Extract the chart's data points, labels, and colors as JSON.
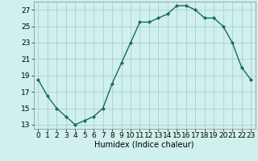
{
  "x": [
    0,
    1,
    2,
    3,
    4,
    5,
    6,
    7,
    8,
    9,
    10,
    11,
    12,
    13,
    14,
    15,
    16,
    17,
    18,
    19,
    20,
    21,
    22,
    23
  ],
  "y": [
    18.5,
    16.5,
    15.0,
    14.0,
    13.0,
    13.5,
    14.0,
    15.0,
    18.0,
    20.5,
    23.0,
    25.5,
    25.5,
    26.0,
    26.5,
    27.5,
    27.5,
    27.0,
    26.0,
    26.0,
    25.0,
    23.0,
    20.0,
    18.5
  ],
  "line_color": "#1a6b5a",
  "marker": "D",
  "markersize": 2.0,
  "linewidth": 1.0,
  "bg_color": "#cff0ec",
  "grid_color": "#a0ccc8",
  "xlabel": "Humidex (Indice chaleur)",
  "xlim": [
    -0.5,
    23.5
  ],
  "ylim": [
    12.5,
    28.0
  ],
  "yticks": [
    13,
    15,
    17,
    19,
    21,
    23,
    25,
    27
  ],
  "xticks": [
    0,
    1,
    2,
    3,
    4,
    5,
    6,
    7,
    8,
    9,
    10,
    11,
    12,
    13,
    14,
    15,
    16,
    17,
    18,
    19,
    20,
    21,
    22,
    23
  ],
  "xlabel_fontsize": 7,
  "tick_fontsize": 6.5
}
